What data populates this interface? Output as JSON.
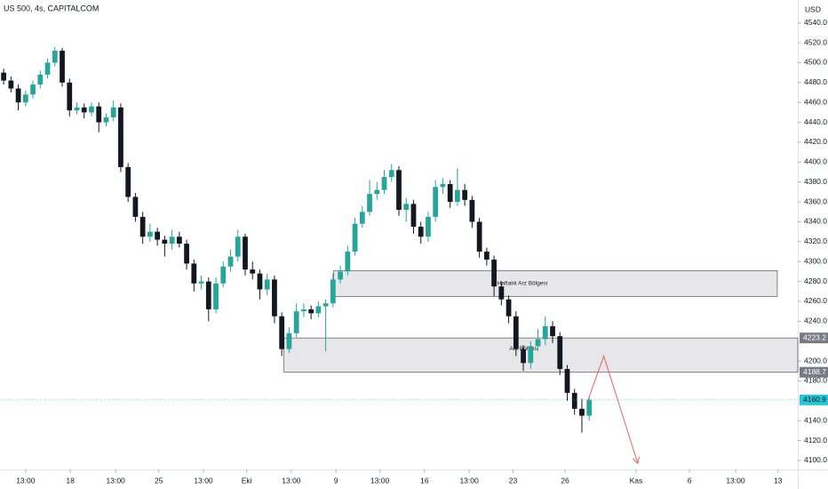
{
  "chart_data": {
    "type": "candlestick",
    "title": "US 500, 4s, CAPITALCOM",
    "currency": "USD",
    "up_color": "#26a69a",
    "down_color": "#131722",
    "open": [
      4490,
      4482,
      4474,
      4460,
      4468,
      4478,
      4488,
      4500,
      4512,
      4480,
      4452,
      4455,
      4450,
      4456,
      4440,
      4445,
      4455,
      4395,
      4365,
      4345,
      4325,
      4330,
      4322,
      4318,
      4325,
      4318,
      4298,
      4278,
      4280,
      4252,
      4278,
      4295,
      4305,
      4325,
      4292,
      4288,
      4272,
      4282,
      4245,
      4212,
      4228,
      4250,
      4252,
      4248,
      4255,
      4258,
      4282,
      4290,
      4310,
      4338,
      4350,
      4368,
      4372,
      4385,
      4392,
      4352,
      4358,
      4335,
      4325,
      4345,
      4375,
      4378,
      4360,
      4372,
      4362,
      4340,
      4310,
      4302,
      4275,
      4262,
      4245,
      4212,
      4198,
      4215,
      4222,
      4235,
      4225,
      4192,
      4168,
      4152,
      4145
    ],
    "high": [
      4494,
      4486,
      4478,
      4472,
      4482,
      4492,
      4504,
      4516,
      4515,
      4484,
      4460,
      4459,
      4460,
      4460,
      4449,
      4462,
      4459,
      4399,
      4369,
      4350,
      4338,
      4334,
      4326,
      4332,
      4330,
      4322,
      4302,
      4286,
      4284,
      4284,
      4300,
      4312,
      4332,
      4328,
      4300,
      4292,
      4288,
      4286,
      4249,
      4234,
      4258,
      4258,
      4256,
      4260,
      4262,
      4288,
      4296,
      4316,
      4344,
      4356,
      4382,
      4380,
      4392,
      4398,
      4396,
      4364,
      4362,
      4340,
      4350,
      4382,
      4384,
      4382,
      4394,
      4378,
      4366,
      4344,
      4314,
      4306,
      4280,
      4266,
      4250,
      4216,
      4220,
      4232,
      4245,
      4240,
      4229,
      4196,
      4172,
      4162,
      4164
    ],
    "low": [
      4478,
      4470,
      4452,
      4456,
      4464,
      4474,
      4484,
      4496,
      4476,
      4446,
      4448,
      4444,
      4446,
      4430,
      4436,
      4441,
      4390,
      4360,
      4340,
      4318,
      4320,
      4316,
      4305,
      4312,
      4314,
      4292,
      4270,
      4272,
      4240,
      4248,
      4274,
      4290,
      4300,
      4286,
      4282,
      4262,
      4266,
      4238,
      4205,
      4208,
      4224,
      4244,
      4242,
      4244,
      4210,
      4254,
      4278,
      4286,
      4306,
      4334,
      4346,
      4362,
      4368,
      4380,
      4346,
      4340,
      4328,
      4318,
      4320,
      4340,
      4368,
      4354,
      4356,
      4356,
      4334,
      4304,
      4296,
      4265,
      4256,
      4238,
      4205,
      4190,
      4192,
      4210,
      4216,
      4218,
      4186,
      4160,
      4146,
      4128,
      4140
    ],
    "close": [
      4482,
      4474,
      4460,
      4468,
      4478,
      4488,
      4500,
      4512,
      4480,
      4452,
      4455,
      4450,
      4456,
      4440,
      4445,
      4455,
      4395,
      4365,
      4345,
      4325,
      4330,
      4322,
      4318,
      4325,
      4318,
      4298,
      4278,
      4280,
      4252,
      4278,
      4295,
      4305,
      4325,
      4292,
      4288,
      4272,
      4282,
      4245,
      4212,
      4228,
      4250,
      4252,
      4248,
      4255,
      4258,
      4282,
      4290,
      4310,
      4338,
      4350,
      4368,
      4372,
      4385,
      4392,
      4352,
      4358,
      4335,
      4325,
      4345,
      4375,
      4378,
      4360,
      4372,
      4362,
      4340,
      4310,
      4302,
      4275,
      4262,
      4245,
      4212,
      4198,
      4215,
      4222,
      4235,
      4225,
      4192,
      4168,
      4152,
      4145,
      4161
    ],
    "xlim": [
      -0.5,
      108.5
    ],
    "xticks": [
      {
        "value": 3.0,
        "label": "13:00"
      },
      {
        "value": 9.1,
        "label": "18"
      },
      {
        "value": 15.3,
        "label": "13:00"
      },
      {
        "value": 21.2,
        "label": "25"
      },
      {
        "value": 27.3,
        "label": "13:00"
      },
      {
        "value": 33.2,
        "label": "Eki"
      },
      {
        "value": 39.3,
        "label": "13:00"
      },
      {
        "value": 45.4,
        "label": "9"
      },
      {
        "value": 51.4,
        "label": "13:00"
      },
      {
        "value": 57.5,
        "label": "16"
      },
      {
        "value": 63.6,
        "label": "13:00"
      },
      {
        "value": 69.6,
        "label": "23"
      },
      {
        "value": 76.7,
        "label": "26"
      },
      {
        "value": 86.4,
        "label": "Kas"
      },
      {
        "value": 93.7,
        "label": "6"
      },
      {
        "value": 100.0,
        "label": "13:00"
      },
      {
        "value": 105.8,
        "label": "13"
      }
    ],
    "ylim": [
      4091,
      4563
    ],
    "yticks": [
      {
        "value": 4100,
        "label": "4100.0"
      },
      {
        "value": 4120,
        "label": "4120.0"
      },
      {
        "value": 4140,
        "label": "4140.0"
      },
      {
        "value": 4180,
        "label": "4180.0"
      },
      {
        "value": 4200,
        "label": "4200.0"
      },
      {
        "value": 4240,
        "label": "4240.0"
      },
      {
        "value": 4260,
        "label": "4260.0"
      },
      {
        "value": 4280,
        "label": "4280.0"
      },
      {
        "value": 4300,
        "label": "4300.0"
      },
      {
        "value": 4320,
        "label": "4320.0"
      },
      {
        "value": 4340,
        "label": "4340.0"
      },
      {
        "value": 4360,
        "label": "4360.0"
      },
      {
        "value": 4380,
        "label": "4380.0"
      },
      {
        "value": 4400,
        "label": "4400.0"
      },
      {
        "value": 4420,
        "label": "4420.0"
      },
      {
        "value": 4440,
        "label": "4440.0"
      },
      {
        "value": 4460,
        "label": "4460.0"
      },
      {
        "value": 4480,
        "label": "4480.0"
      },
      {
        "value": 4500,
        "label": "4500.0"
      },
      {
        "value": 4520,
        "label": "4520.0"
      },
      {
        "value": 4540,
        "label": "4540.0"
      }
    ],
    "zones": [
      {
        "label": "Haftalık Arz Bölgesi",
        "top": 4291,
        "bottom": 4265,
        "x_start": 45.1,
        "x_end": 105.7,
        "axis_tags": false
      },
      {
        "label": "Arz Bölgesi",
        "top": 4223.2,
        "bottom": 4188.7,
        "x_start": 38.3,
        "x_end": 108.5,
        "axis_tags": true
      }
    ],
    "last_price": 4160.9,
    "last_price_color": "#26c6da",
    "projection": {
      "x": [
        79.8,
        82.0,
        86.6
      ],
      "y": [
        4160,
        4205,
        4098
      ],
      "color": "#e06666"
    }
  }
}
